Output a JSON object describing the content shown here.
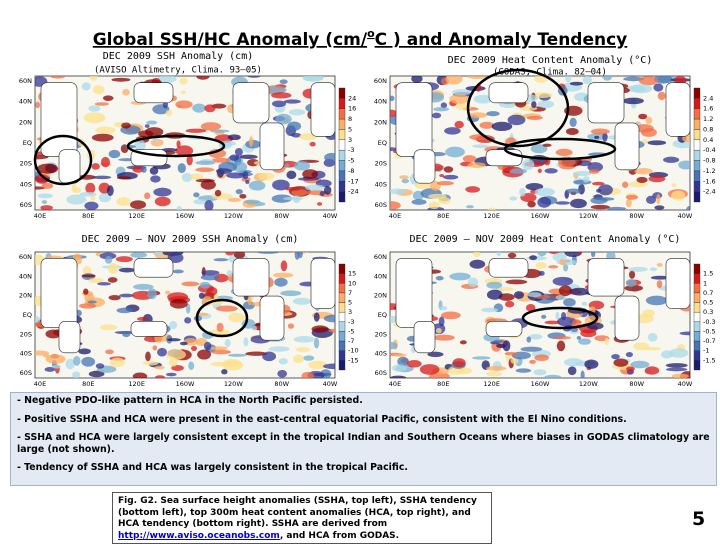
{
  "title": {
    "main": "Global SSH/HC Anomaly (cm/",
    "sup": "o",
    "rest": "C ) and Anomaly Tendency"
  },
  "panels": [
    {
      "title": "DEC 2009 SSH Anomaly (cm)",
      "subtitle": "(AVISO Altimetry, Clima. 93–05)",
      "colorbar": [
        "24",
        "16",
        "8",
        "5",
        "3",
        "-3",
        "-5",
        "-8",
        "-17",
        "-24"
      ],
      "lat_labels": [
        "60N",
        "40N",
        "20N",
        "EQ",
        "20S",
        "40S",
        "60S"
      ],
      "lon_labels": [
        "40E",
        "80E",
        "120E",
        "160W",
        "120W",
        "80W",
        "40W"
      ]
    },
    {
      "title": "DEC 2009 Heat Content Anomaly (°C)",
      "subtitle": "(GODAS, Clima. 82–04)",
      "colorbar": [
        "2.4",
        "1.6",
        "1.2",
        "0.8",
        "0.4",
        "-0.4",
        "-0.8",
        "-1.2",
        "-1.6",
        "-2.4"
      ],
      "lat_labels": [
        "60N",
        "40N",
        "20N",
        "EQ",
        "20S",
        "40S",
        "60S"
      ],
      "lon_labels": [
        "40E",
        "80E",
        "120E",
        "160W",
        "120W",
        "80W",
        "40W"
      ]
    },
    {
      "title": "DEC 2009 — NOV 2009 SSH Anomaly (cm)",
      "subtitle": "",
      "colorbar": [
        "15",
        "10",
        "7",
        "5",
        "3",
        "-3",
        "-5",
        "-7",
        "-10",
        "-15"
      ],
      "lat_labels": [
        "60N",
        "40N",
        "20N",
        "EQ",
        "20S",
        "40S",
        "60S"
      ],
      "lon_labels": [
        "40E",
        "80E",
        "120E",
        "160W",
        "120W",
        "80W",
        "40W"
      ]
    },
    {
      "title": "DEC 2009 — NOV 2009 Heat Content Anomaly (°C)",
      "subtitle": "",
      "colorbar": [
        "1.5",
        "1",
        "0.7",
        "0.5",
        "0.3",
        "-0.3",
        "-0.5",
        "-0.7",
        "-1",
        "-1.5"
      ],
      "lat_labels": [
        "60N",
        "40N",
        "20N",
        "EQ",
        "20S",
        "40S",
        "60S"
      ],
      "lon_labels": [
        "40E",
        "80E",
        "120E",
        "160W",
        "120W",
        "80W",
        "40W"
      ]
    }
  ],
  "bullets": [
    "- Negative PDO-like pattern in HCA in the North Pacific persisted.",
    "- Positive SSHA and HCA were present in the east-central equatorial Pacific, consistent with the El Nino conditions.",
    "- SSHA and HCA were largely consistent except in the tropical Indian and Southern Oceans where biases in GODAS climatology are large (not shown).",
    "- Tendency of SSHA and HCA was largely consistent in the tropical Pacific."
  ],
  "caption": {
    "text": "Fig. G2. Sea surface height anomalies (SSHA, top left), SSHA tendency (bottom left), top 300m heat content anomalies (HCA, top right), and HCA tendency (bottom right).  SSHA are derived from ",
    "link": "http://www.aviso.oceanobs.com",
    "tail": ", and HCA from GODAS."
  },
  "page_number": "5"
}
